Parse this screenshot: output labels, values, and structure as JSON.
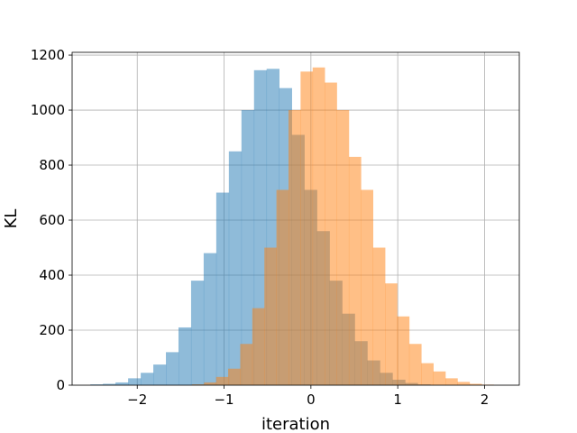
{
  "chart_data": {
    "type": "histogram",
    "xlabel": "iteration",
    "ylabel": "KL",
    "xlim": [
      -2.75,
      2.4
    ],
    "ylim": [
      0,
      1210
    ],
    "xticks": [
      -2,
      -1,
      0,
      1,
      2
    ],
    "xtick_labels": [
      "−2",
      "−1",
      "0",
      "1",
      "2"
    ],
    "yticks": [
      0,
      200,
      400,
      600,
      800,
      1000,
      1200
    ],
    "ytick_labels": [
      "0",
      "200",
      "400",
      "600",
      "800",
      "1000",
      "1200"
    ],
    "grid": true,
    "legend": false,
    "series": [
      {
        "color": "#1f77b4",
        "opacity": 0.5,
        "bin_width": 0.145,
        "start": -2.54,
        "counts": [
          3,
          5,
          10,
          25,
          45,
          75,
          120,
          210,
          380,
          480,
          700,
          850,
          1000,
          1145,
          1150,
          1080,
          910,
          710,
          560,
          380,
          260,
          160,
          90,
          45,
          20,
          8,
          3
        ]
      },
      {
        "color": "#ff7f0e",
        "opacity": 0.5,
        "bin_width": 0.139,
        "start": -1.37,
        "counts": [
          3,
          10,
          30,
          60,
          150,
          280,
          500,
          710,
          1000,
          1140,
          1155,
          1100,
          1000,
          830,
          710,
          500,
          370,
          250,
          150,
          80,
          50,
          25,
          12,
          5,
          2
        ]
      }
    ]
  }
}
